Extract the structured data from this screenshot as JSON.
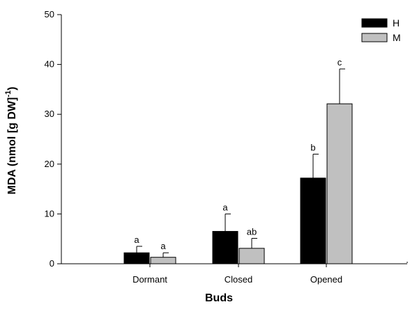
{
  "chart_data": {
    "type": "bar",
    "title": "",
    "xlabel": "Buds",
    "ylabel": "MDA (nmol [g DW]",
    "ylabel_superscript": "-1",
    "ylabel_close": ")",
    "categories": [
      "Dormant",
      "Closed",
      "Opened"
    ],
    "ylim": [
      0,
      50
    ],
    "yticks": [
      0,
      10,
      20,
      30,
      40,
      50
    ],
    "grid": false,
    "legend_position": "top-right",
    "series": [
      {
        "name": "H",
        "color": "#000000",
        "values": [
          2.2,
          6.5,
          17.2
        ],
        "errors": [
          1.3,
          3.5,
          4.8
        ],
        "labels": [
          "a",
          "a",
          "b"
        ]
      },
      {
        "name": "M",
        "color": "#c0c0c0",
        "values": [
          1.3,
          3.1,
          32.1
        ],
        "errors": [
          0.9,
          2.0,
          7.0
        ],
        "labels": [
          "a",
          "ab",
          "c"
        ]
      }
    ]
  }
}
